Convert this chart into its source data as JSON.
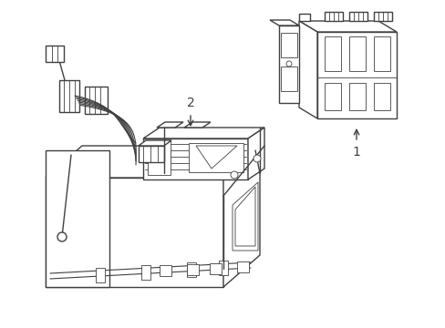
{
  "bg_color": "#ffffff",
  "lc": "#404040",
  "lw": 1.0,
  "tlw": 0.6,
  "label_1": "1",
  "label_2": "2",
  "fs": 10,
  "figsize": [
    4.89,
    3.6
  ],
  "dpi": 100
}
